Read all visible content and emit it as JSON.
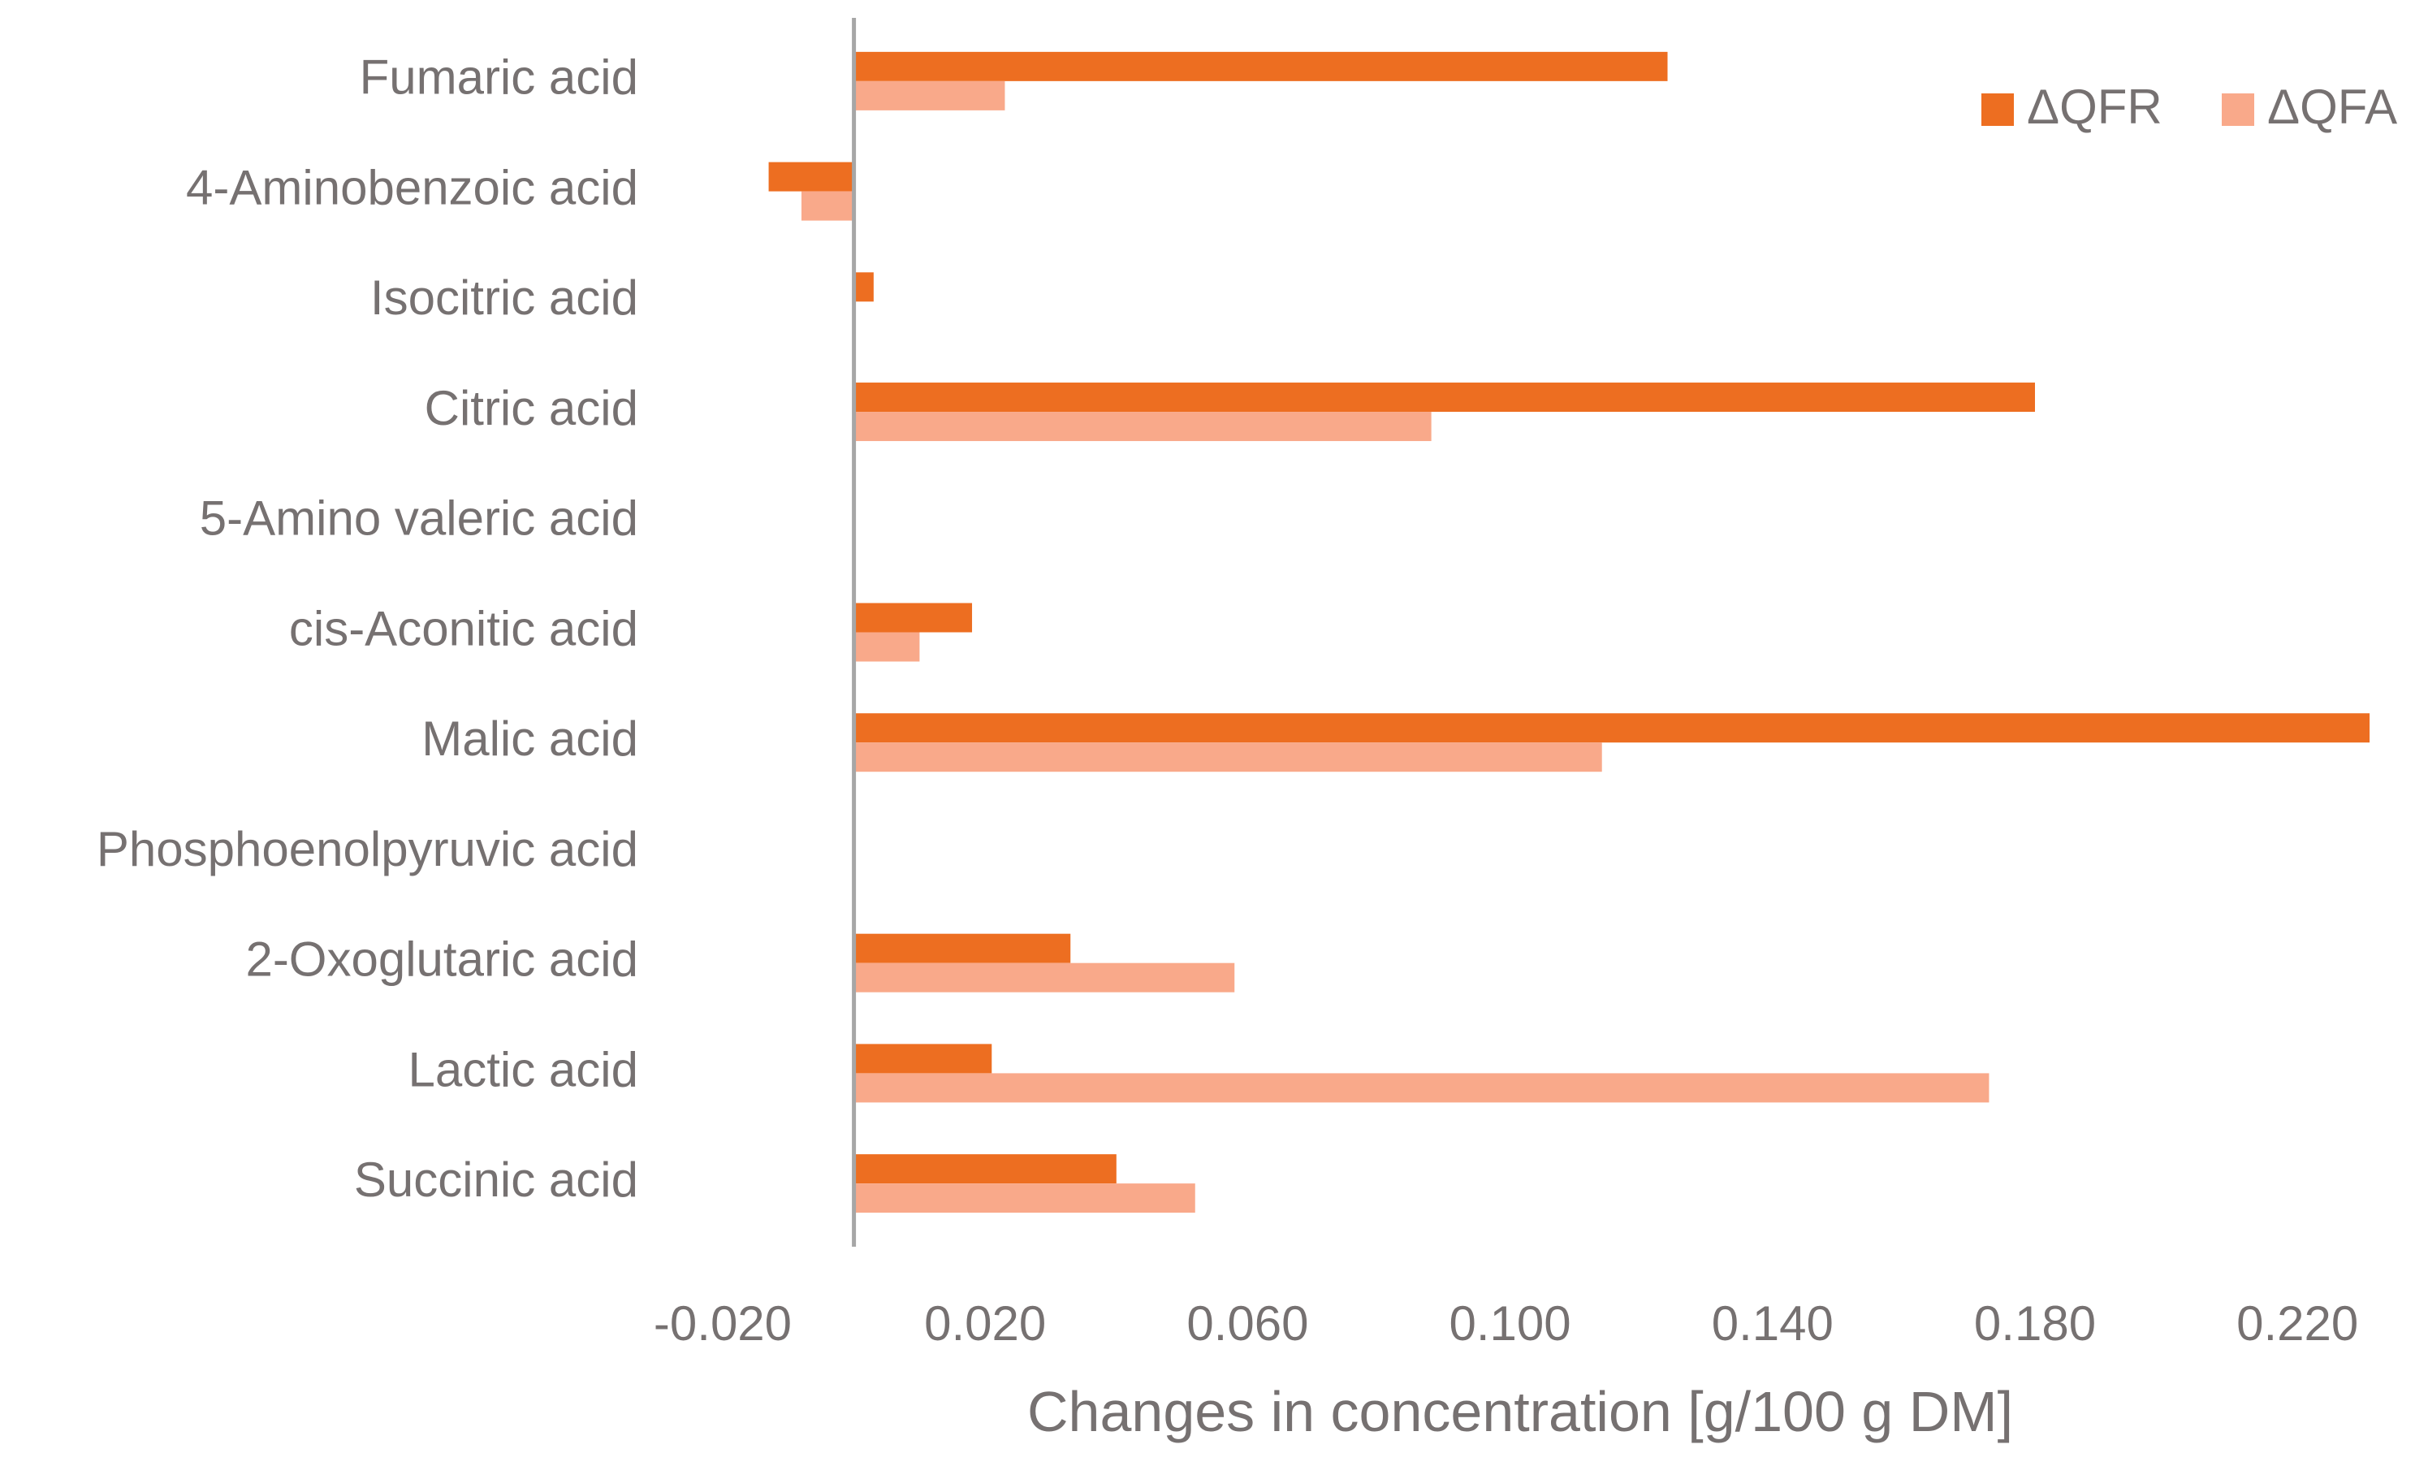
{
  "chart_data": {
    "type": "bar",
    "orientation": "horizontal",
    "title": "",
    "categories": [
      "Fumaric acid",
      "4-Aminobenzoic acid",
      "Isocitric acid",
      "Citric acid",
      "5-Amino valeric acid",
      "cis-Aconitic acid",
      "Malic acid",
      "Phosphoenolpyruvic acid",
      "2-Oxoglutaric acid",
      "Lactic acid",
      "Succinic acid"
    ],
    "series": [
      {
        "name": "ΔQFR",
        "color": "#ED6E21",
        "values": [
          0.124,
          -0.013,
          0.003,
          0.18,
          0.0,
          0.018,
          0.231,
          0.0,
          0.033,
          0.021,
          0.04
        ]
      },
      {
        "name": "ΔQFA",
        "color": "#F9A98A",
        "values": [
          0.023,
          -0.008,
          0.0,
          0.088,
          0.0,
          0.01,
          0.114,
          0.0,
          0.058,
          0.173,
          0.052
        ]
      }
    ],
    "xlabel": "Changes in concentration [g/100 g DM]",
    "ylabel": "",
    "xlim": [
      -0.02,
      0.23
    ],
    "xticks": [
      -0.02,
      0.02,
      0.06,
      0.1,
      0.14,
      0.18,
      0.22
    ],
    "xtick_labels": [
      "-0.020",
      "0.020",
      "0.060",
      "0.100",
      "0.140",
      "0.180",
      "0.220"
    ],
    "grid": false,
    "legend_position": "top-right",
    "colors": {
      "text": "#767171",
      "axis": "#A6A6A6"
    }
  }
}
